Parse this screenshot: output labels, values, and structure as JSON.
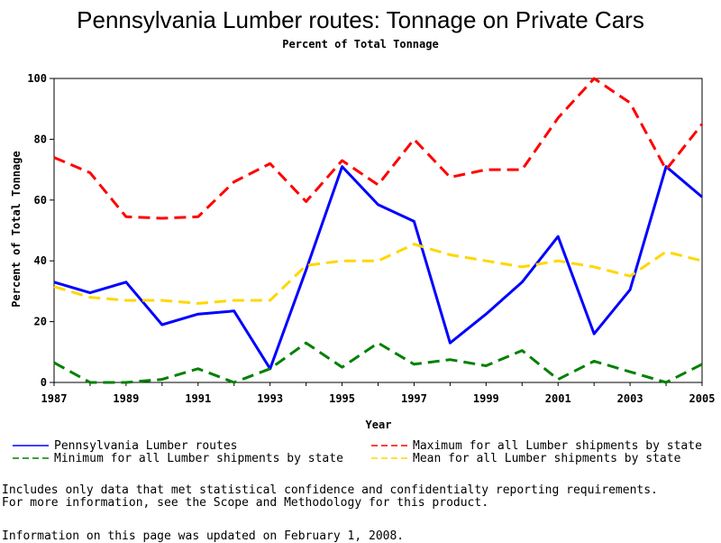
{
  "chart_data": {
    "type": "line",
    "title": "Pennsylvania Lumber routes: Tonnage on Private Cars",
    "subtitle": "Percent of Total Tonnage",
    "xlabel": "Year",
    "ylabel": "Percent of Total Tonnage",
    "xlim": [
      1987,
      2005
    ],
    "ylim": [
      0,
      100
    ],
    "x_ticks": [
      1987,
      1989,
      1991,
      1993,
      1995,
      1997,
      1999,
      2001,
      2003,
      2005
    ],
    "y_ticks": [
      0,
      20,
      40,
      60,
      80,
      100
    ],
    "x": [
      1987,
      1988,
      1989,
      1990,
      1991,
      1992,
      1993,
      1994,
      1995,
      1996,
      1997,
      1998,
      1999,
      2000,
      2001,
      2002,
      2003,
      2004,
      2005
    ],
    "series": [
      {
        "name": "Pennsylvania Lumber routes",
        "color": "#0000ff",
        "style": "solid",
        "values": [
          33,
          29.5,
          33,
          19,
          22.5,
          23.5,
          4.5,
          37,
          71,
          58.5,
          53,
          13,
          22.5,
          33,
          48,
          16,
          30.5,
          71,
          61
        ]
      },
      {
        "name": "Maximum for all Lumber shipments by state",
        "color": "#ff0000",
        "style": "dashed",
        "values": [
          74,
          69,
          54.5,
          54,
          54.5,
          66,
          72,
          59.5,
          73,
          65,
          80,
          67.5,
          70,
          70,
          87,
          100,
          92,
          70,
          85
        ]
      },
      {
        "name": "Minimum for all Lumber shipments by state",
        "color": "#008000",
        "style": "dashed",
        "values": [
          6.5,
          0,
          0,
          1,
          4.5,
          0,
          4.5,
          13,
          5,
          13,
          6,
          7.5,
          5.5,
          10.5,
          1,
          7,
          3.5,
          0,
          6
        ]
      },
      {
        "name": "Mean for all Lumber shipments by state",
        "color": "#ffd700",
        "style": "dashed",
        "values": [
          31.5,
          28,
          27,
          27,
          26,
          27,
          27,
          38.5,
          40,
          40,
          45.5,
          42,
          40,
          38,
          40,
          38,
          35,
          43,
          40
        ]
      }
    ],
    "legend_position": "bottom"
  },
  "notes": {
    "line1": "Includes only data that met statistical confidence and confidentialty reporting requirements.",
    "line2": "For more information, see the Scope and Methodology for this product.",
    "line3": "Information on this page was updated on February 1, 2008."
  }
}
